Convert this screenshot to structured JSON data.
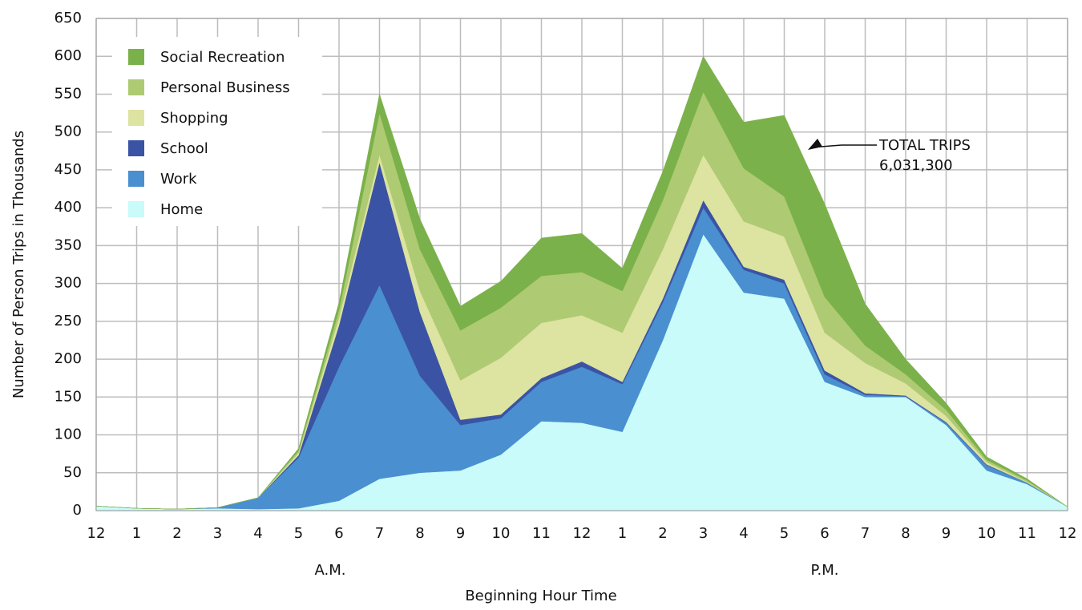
{
  "chart_data": {
    "type": "stacked-area",
    "y_label": "Number of Person Trips in Thousands",
    "x_label": "Beginning Hour Time",
    "period_labels": [
      "A.M.",
      "P.M."
    ],
    "annotation": [
      "TOTAL TRIPS",
      "6,031,300"
    ],
    "categories": [
      "12",
      "1",
      "2",
      "3",
      "4",
      "5",
      "6",
      "7",
      "8",
      "9",
      "10",
      "11",
      "12",
      "1",
      "2",
      "3",
      "4",
      "5",
      "6",
      "7",
      "8",
      "9",
      "10",
      "11",
      "12"
    ],
    "ylim": [
      0,
      650
    ],
    "yticks": [
      0,
      50,
      100,
      150,
      200,
      250,
      300,
      350,
      400,
      450,
      500,
      550,
      600,
      650
    ],
    "grid": true,
    "legend": "top-left",
    "series": [
      {
        "name": "Home",
        "color": "#c8fbfa",
        "values": [
          6,
          3,
          2,
          3,
          2,
          3,
          13,
          42,
          50,
          53,
          74,
          118,
          116,
          104,
          225,
          365,
          288,
          280,
          170,
          150,
          150,
          113,
          53,
          35,
          5
        ]
      },
      {
        "name": "Work",
        "color": "#4a8fcf",
        "values": [
          0,
          0,
          0,
          1,
          15,
          67,
          177,
          256,
          128,
          60,
          48,
          52,
          74,
          63,
          50,
          35,
          30,
          20,
          10,
          3,
          1,
          3,
          7,
          2,
          0
        ]
      },
      {
        "name": "School",
        "color": "#3b53a4",
        "values": [
          0,
          0,
          0,
          0,
          0,
          3,
          55,
          162,
          84,
          7,
          5,
          5,
          7,
          3,
          5,
          10,
          4,
          5,
          5,
          2,
          1,
          1,
          1,
          0,
          0
        ]
      },
      {
        "name": "Shopping",
        "color": "#dde3a0",
        "values": [
          0,
          0,
          0,
          0,
          0,
          3,
          10,
          10,
          28,
          52,
          75,
          73,
          61,
          65,
          65,
          60,
          60,
          57,
          50,
          40,
          16,
          8,
          3,
          1,
          0
        ]
      },
      {
        "name": "Personal Business",
        "color": "#aeca72",
        "values": [
          0,
          0,
          0,
          0,
          0,
          3,
          10,
          55,
          55,
          66,
          66,
          62,
          57,
          55,
          65,
          83,
          70,
          53,
          47,
          23,
          12,
          8,
          3,
          2,
          0
        ]
      },
      {
        "name": "Social Recreation",
        "color": "#7bb14a",
        "values": [
          0,
          0,
          0,
          0,
          0,
          3,
          10,
          25,
          40,
          32,
          35,
          50,
          51,
          30,
          38,
          47,
          61,
          107,
          123,
          55,
          20,
          9,
          4,
          2,
          0
        ]
      }
    ]
  }
}
